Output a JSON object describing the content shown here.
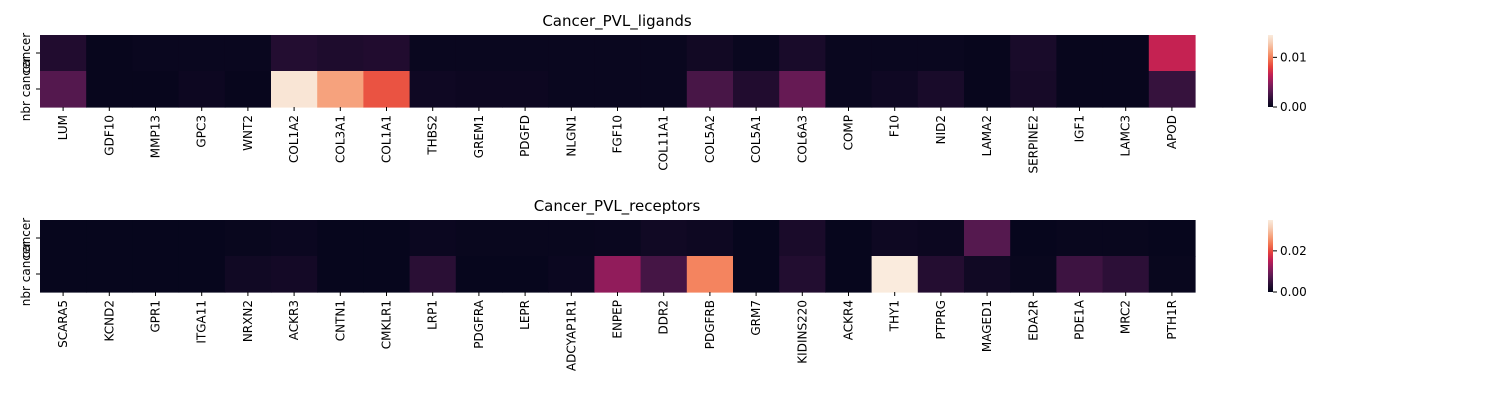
{
  "colormap": [
    "#03051a",
    "#2b0f36",
    "#5a1a52",
    "#8c1c5c",
    "#c11f54",
    "#e6413b",
    "#f37651",
    "#f6a47f",
    "#f6cdb4",
    "#faebdd"
  ],
  "chart_data": [
    {
      "type": "heatmap",
      "title": "Cancer_PVL_ligands",
      "rows": [
        "cancer",
        "nbr cancer"
      ],
      "columns": [
        "LUM",
        "GDF10",
        "MMP13",
        "GPC3",
        "WNT2",
        "COL1A2",
        "COL3A1",
        "COL1A1",
        "THBS2",
        "GREM1",
        "PDGFD",
        "NLGN1",
        "FGF10",
        "COL11A1",
        "COL5A2",
        "COL5A1",
        "COL6A3",
        "COMP",
        "F10",
        "NID2",
        "LAMA2",
        "SERPINE2",
        "IGF1",
        "LAMC3",
        "APOD"
      ],
      "values": [
        [
          0.0012,
          0.0002,
          0.0003,
          0.0003,
          0.0003,
          0.0013,
          0.0011,
          0.0012,
          0.0003,
          0.0003,
          0.0003,
          0.0003,
          0.0003,
          0.0003,
          0.0006,
          0.0003,
          0.0009,
          0.0003,
          0.0003,
          0.0003,
          0.0002,
          0.0009,
          0.0002,
          0.0002,
          0.0066
        ],
        [
          0.003,
          0.0002,
          0.0002,
          0.0004,
          0.0002,
          0.0142,
          0.0112,
          0.0086,
          0.0005,
          0.0004,
          0.0004,
          0.0003,
          0.0003,
          0.0003,
          0.0026,
          0.0012,
          0.0036,
          0.0003,
          0.0005,
          0.0009,
          0.0002,
          0.0008,
          0.0002,
          0.0002,
          0.002
        ]
      ],
      "colorbar": {
        "vmin": 0,
        "vmax": 0.0145,
        "ticks": [
          0.0,
          0.01
        ],
        "tick_labels": [
          "0.00",
          "0.01"
        ]
      }
    },
    {
      "type": "heatmap",
      "title": "Cancer_PVL_receptors",
      "rows": [
        "cancer",
        "nbr cancer"
      ],
      "columns": [
        "SCARA5",
        "KCND2",
        "GPR1",
        "ITGA11",
        "NRXN2",
        "ACKR3",
        "CNTN1",
        "CMKLR1",
        "LRP1",
        "PDGFRA",
        "LEPR",
        "ADCYAP1R1",
        "ENPEP",
        "DDR2",
        "PDGFRB",
        "GRM7",
        "KIDINS220",
        "ACKR4",
        "THY1",
        "PTPRG",
        "MAGED1",
        "EDA2R",
        "PDE1A",
        "MRC2",
        "PTH1R"
      ],
      "values": [
        [
          0.0004,
          0.0004,
          0.0004,
          0.0004,
          0.0006,
          0.0008,
          0.0004,
          0.0004,
          0.0008,
          0.0006,
          0.0006,
          0.0006,
          0.0007,
          0.0014,
          0.0011,
          0.0004,
          0.0022,
          0.0004,
          0.0011,
          0.0009,
          0.0074,
          0.0004,
          0.0006,
          0.0006,
          0.0004
        ],
        [
          0.0004,
          0.0004,
          0.0004,
          0.0004,
          0.0014,
          0.0017,
          0.0004,
          0.0004,
          0.0038,
          0.0004,
          0.0004,
          0.0008,
          0.012,
          0.006,
          0.0245,
          0.0004,
          0.003,
          0.0004,
          0.035,
          0.0032,
          0.0014,
          0.0006,
          0.0054,
          0.004,
          0.0006
        ]
      ],
      "colorbar": {
        "vmin": 0,
        "vmax": 0.035,
        "ticks": [
          0.0,
          0.02
        ],
        "tick_labels": [
          "0.00",
          "0.02"
        ]
      }
    }
  ]
}
